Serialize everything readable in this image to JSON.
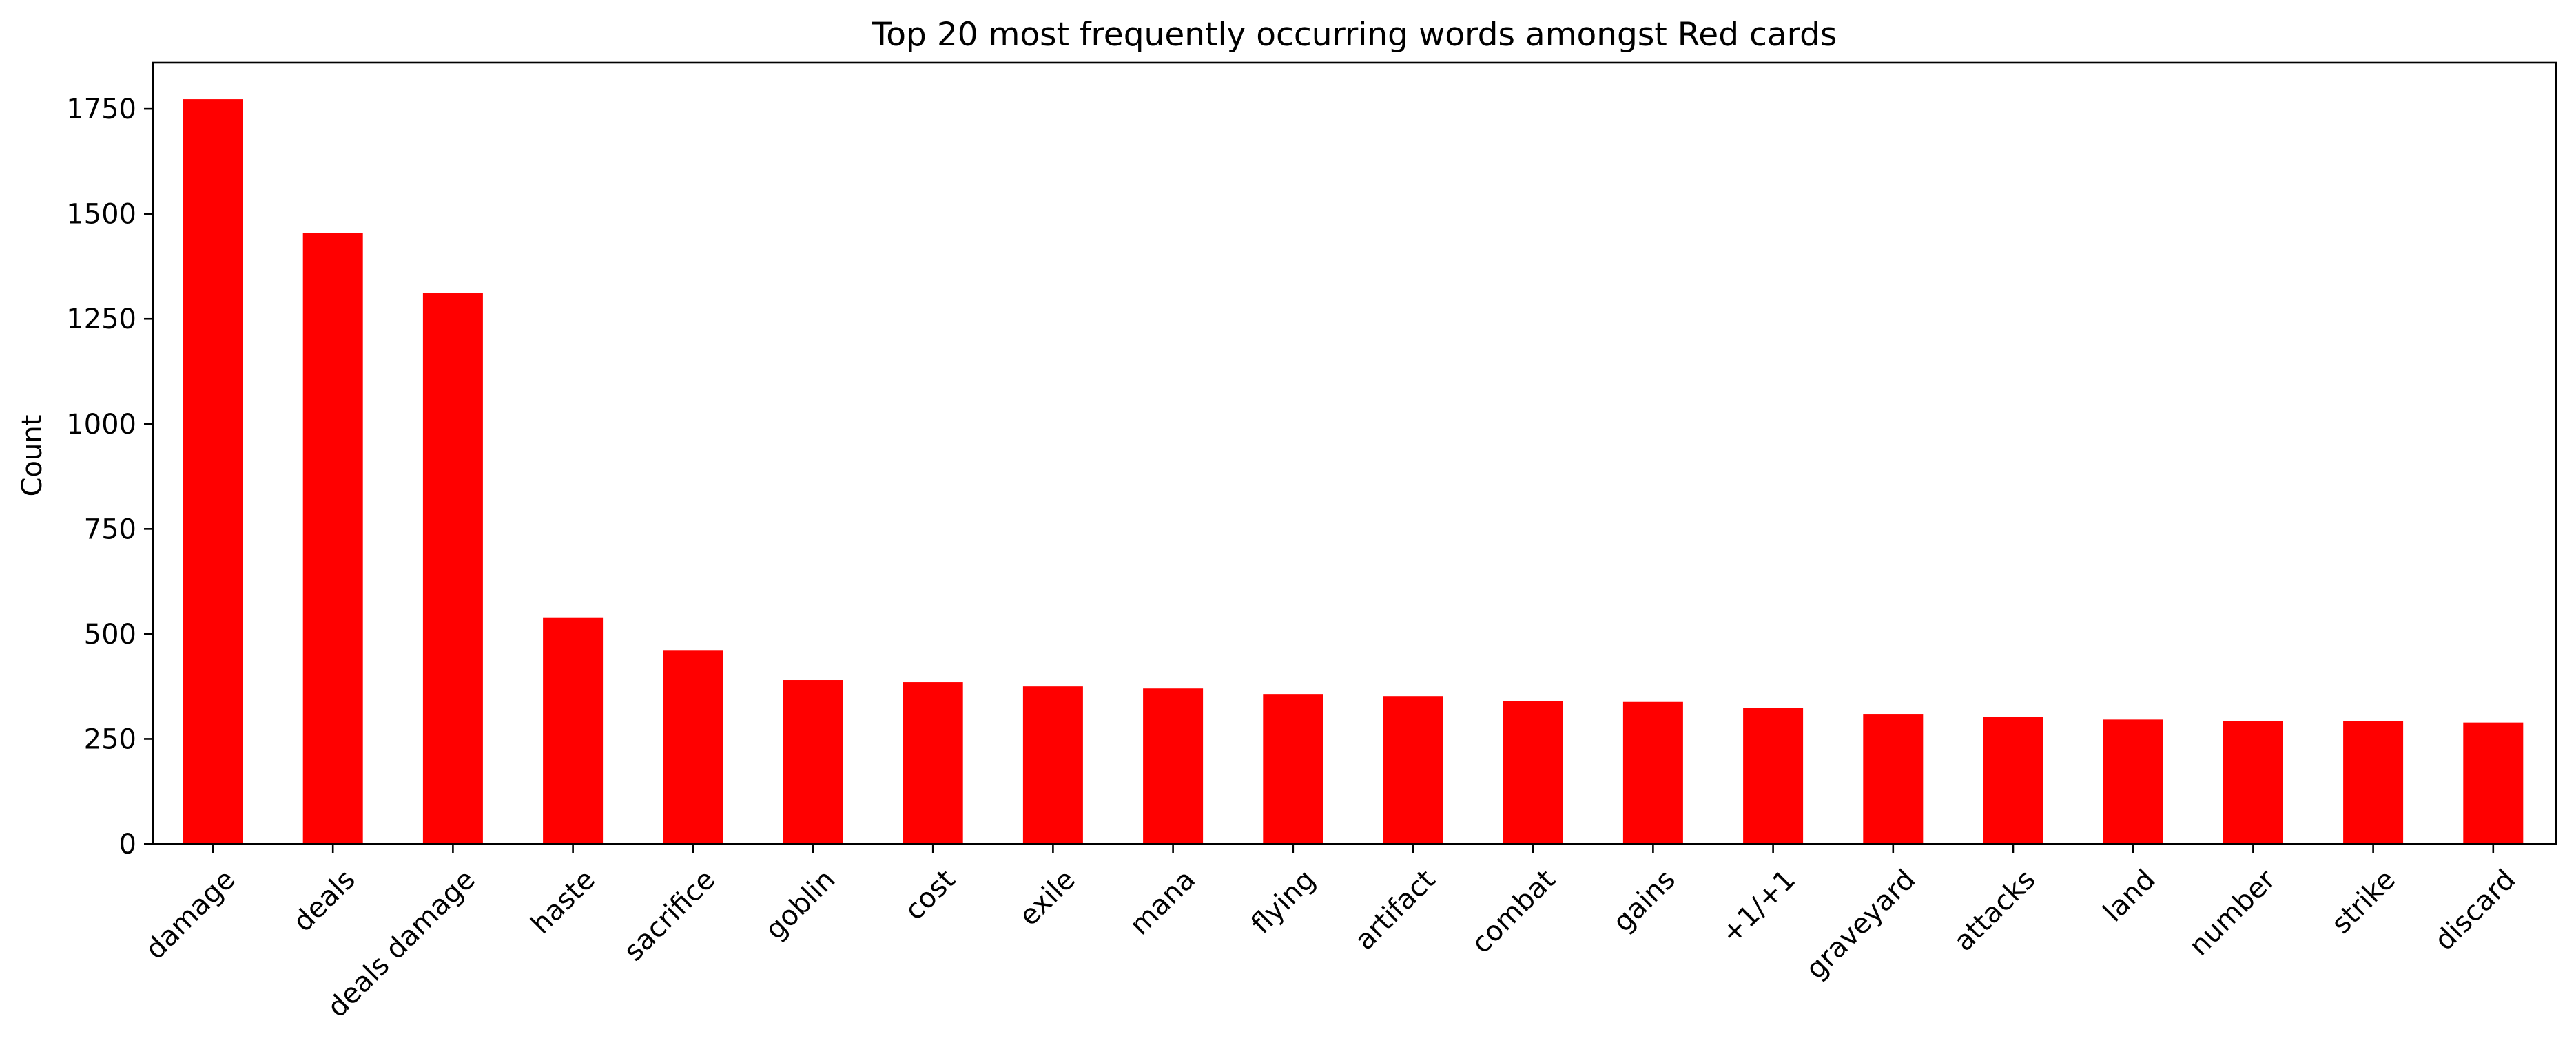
{
  "chart_data": {
    "type": "bar",
    "title": "Top 20 most frequently occurring words amongst Red cards",
    "xlabel": "",
    "ylabel": "Count",
    "categories": [
      "damage",
      "deals",
      "deals damage",
      "haste",
      "sacrifice",
      "goblin",
      "cost",
      "exile",
      "mana",
      "flying",
      "artifact",
      "combat",
      "gains",
      "+1/+1",
      "graveyard",
      "attacks",
      "land",
      "number",
      "strike",
      "discard"
    ],
    "values": [
      1773,
      1454,
      1311,
      538,
      460,
      390,
      385,
      375,
      370,
      357,
      352,
      340,
      338,
      324,
      308,
      302,
      296,
      293,
      292,
      289
    ],
    "ylim": [
      0,
      1860
    ],
    "yticks": [
      0,
      250,
      500,
      750,
      1000,
      1250,
      1500,
      1750
    ],
    "bar_color": "#ff0000",
    "grid": false,
    "legend": "none"
  }
}
